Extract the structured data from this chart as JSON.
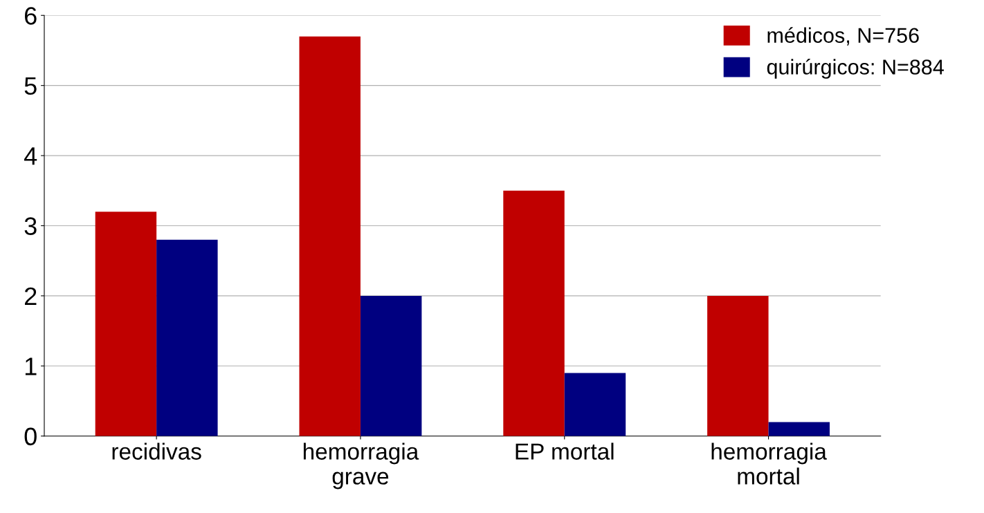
{
  "chart_data": {
    "type": "bar",
    "categories": [
      "recidivas",
      "hemorragia\ngrave",
      "EP mortal",
      "hemorragia\nmortal"
    ],
    "series": [
      {
        "name": "médicos, N=756",
        "color": "#c00000",
        "values": [
          3.2,
          5.7,
          3.5,
          2.0
        ]
      },
      {
        "name": "quirúrgicos: N=884",
        "color": "#000080",
        "values": [
          2.8,
          2.0,
          0.9,
          0.2
        ]
      }
    ],
    "ylim": [
      0,
      6
    ],
    "yticks": [
      0,
      1,
      2,
      3,
      4,
      5,
      6
    ],
    "grid": "y",
    "legend": "top right"
  }
}
